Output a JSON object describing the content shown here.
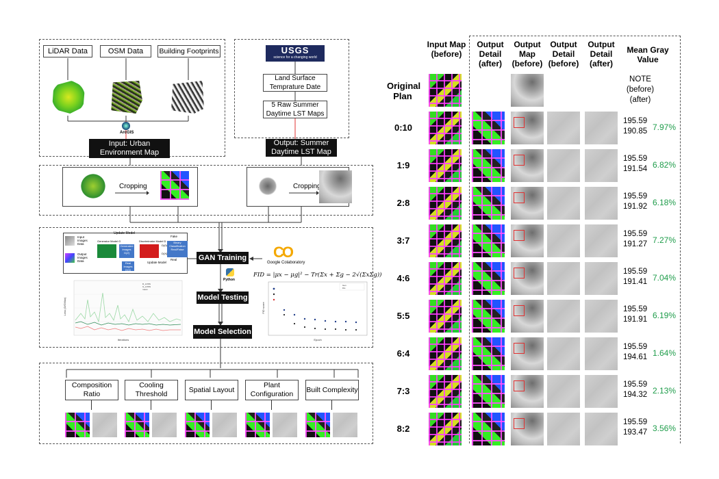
{
  "workflow": {
    "inputs": {
      "lidar": "LiDAR Data",
      "osm": "OSM Data",
      "footprints": "Building Footprints",
      "arcgis": "ArcGIS"
    },
    "input_label": "Input: Urban Environment Map",
    "usgs": {
      "logo": "USGS",
      "tagline": "science for a changing world",
      "lst_date": "Land Surface Temprature Date",
      "raw_maps": "5 Raw Summer Daytime LST Maps"
    },
    "output_label": "Output: Summer Daytime LST Map",
    "cropping_left": "Cropping",
    "cropping_right": "Cropping",
    "gan": {
      "update_model_top": "Update Model",
      "input_images": "Input Images Data",
      "output_images": "Output Images Data",
      "generator": "Generator Model G",
      "generated": "Generated Images G(Z)",
      "discriminator": "Discriminator Model D",
      "real_images": "Real Images G(X)",
      "fake": "Fake",
      "binary": "Binary Classification Real/False",
      "real": "Real",
      "update_model_bottom": "Update Model",
      "gz": "D(G(Z))",
      "dx": "D(X)"
    },
    "steps": {
      "gan_training": "GAN Training",
      "model_testing": "Model Testing",
      "model_selection": "Model Selection"
    },
    "colab": "Google Colaboratory",
    "python": "Python",
    "fid_formula": "FID = |μx − μg|² − Tr(Σx + Σg − 2√(ΣxΣg))",
    "loss_chart": {
      "xlabel": "Iterations",
      "ylabel": "Loss (D/GMax)"
    },
    "fid_chart": {
      "xlabel": "Epoch",
      "ylabel": "FID score"
    },
    "factors": [
      {
        "label": "Composition Ratio"
      },
      {
        "label": "Cooling Threshold"
      },
      {
        "label": "Spatial Layout"
      },
      {
        "label": "Plant Configuration"
      },
      {
        "label": "Built Complexity"
      }
    ]
  },
  "table": {
    "headers": {
      "input_map": "Input Map (before)",
      "output_detail_after": "Output Detail (after)",
      "output_map_before": "Output Map (before)",
      "output_detail_before": "Output Detail (before)",
      "output_detail_after2": "Output Detail (after)",
      "mean_gray": "Mean Gray Value"
    },
    "original": {
      "label": "Original Plan",
      "note": "NOTE (before) (after)"
    },
    "rows": [
      {
        "label": "0:10",
        "before": "195.59",
        "after": "190.85",
        "pct": "7.97%"
      },
      {
        "label": "1:9",
        "before": "195.59",
        "after": "191.54",
        "pct": "6.82%"
      },
      {
        "label": "2:8",
        "before": "195.59",
        "after": "191.92",
        "pct": "6.18%"
      },
      {
        "label": "3:7",
        "before": "195.59",
        "after": "191.27",
        "pct": "7.27%"
      },
      {
        "label": "4:6",
        "before": "195.59",
        "after": "191.41",
        "pct": "7.04%"
      },
      {
        "label": "5:5",
        "before": "195.59",
        "after": "191.91",
        "pct": "6.19%"
      },
      {
        "label": "6:4",
        "before": "195.59",
        "after": "194.61",
        "pct": "1.64%"
      },
      {
        "label": "7:3",
        "before": "195.59",
        "after": "194.32",
        "pct": "2.13%"
      },
      {
        "label": "8:2",
        "before": "195.59",
        "after": "193.47",
        "pct": "3.56%"
      }
    ],
    "colors": {
      "pct": "#1e9c4a"
    }
  }
}
